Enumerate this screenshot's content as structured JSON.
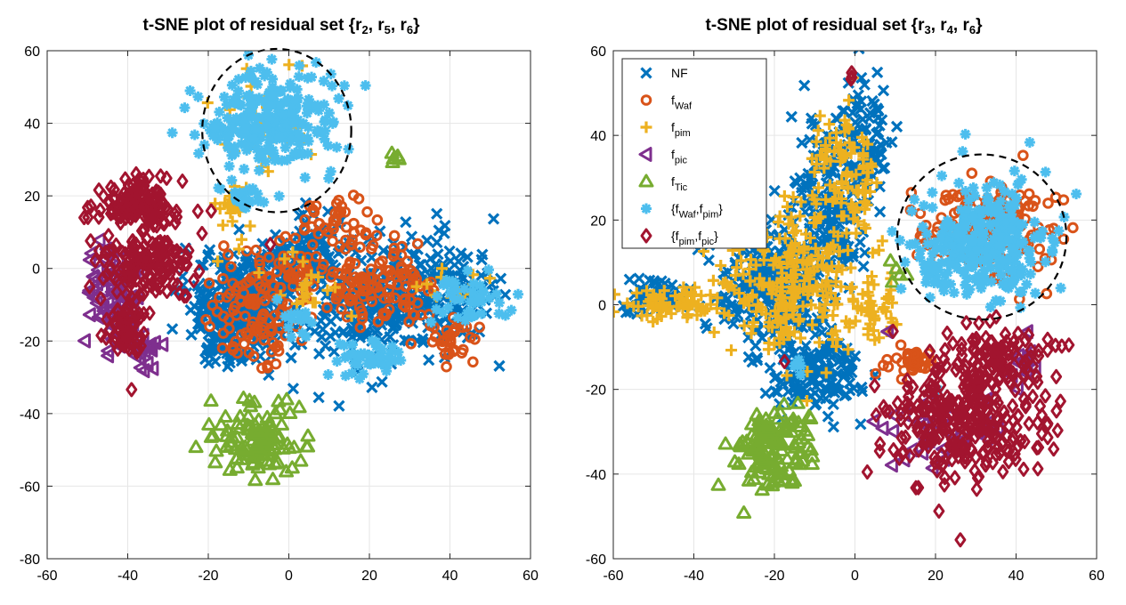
{
  "colors": {
    "NF": "#0072BD",
    "fWaf": "#D95319",
    "fpim": "#EDB120",
    "fpic": "#7E2F8E",
    "fTic": "#77AC30",
    "fWaf_fpim": "#4DBEEE",
    "fpim_fpic": "#A2142F",
    "grid": "#e6e6e6"
  },
  "chart_data": [
    {
      "type": "scatter",
      "title_parts": [
        "t-SNE plot of residual set {r",
        "2",
        ", r",
        "5",
        ", r",
        "6",
        "}"
      ],
      "xlim": [
        -60,
        60
      ],
      "ylim": [
        -80,
        60
      ],
      "xticks": [
        -60,
        -40,
        -20,
        0,
        20,
        40,
        60
      ],
      "yticks": [
        -80,
        -60,
        -40,
        -20,
        0,
        20,
        40,
        60
      ],
      "grid": true,
      "annotations": [
        {
          "type": "dashed-circle",
          "cx": -3,
          "cy": 38,
          "rx": 18.5,
          "ry": 22.5
        }
      ],
      "clusters": [
        {
          "cls": "NF",
          "marker": "x",
          "regions": [
            [
              -10,
              -8,
              14,
              14,
              300
            ],
            [
              20,
              -10,
              18,
              18,
              220
            ],
            [
              40,
              -5,
              15,
              16,
              120
            ],
            [
              5,
              5,
              10,
              10,
              80
            ],
            [
              -15,
              -20,
              8,
              8,
              60
            ]
          ]
        },
        {
          "cls": "fWaf",
          "marker": "o",
          "regions": [
            [
              -8,
              -12,
              12,
              14,
              110
            ],
            [
              22,
              -5,
              14,
              12,
              120
            ],
            [
              12,
              12,
              10,
              7,
              40
            ],
            [
              40,
              -20,
              6,
              6,
              30
            ],
            [
              2,
              0,
              8,
              8,
              40
            ]
          ]
        },
        {
          "cls": "fpim",
          "marker": "+",
          "regions": [
            [
              -5,
              40,
              12,
              14,
              30
            ],
            [
              -15,
              15,
              6,
              10,
              25
            ],
            [
              5,
              -5,
              10,
              8,
              20
            ],
            [
              42,
              -5,
              8,
              8,
              15
            ]
          ]
        },
        {
          "cls": "fpic",
          "marker": "<",
          "regions": [
            [
              -44,
              -8,
              6,
              14,
              70
            ],
            [
              -36,
              -22,
              5,
              6,
              25
            ]
          ]
        },
        {
          "cls": "fTic",
          "marker": "^",
          "regions": [
            [
              -8,
              -47,
              12,
              9,
              110
            ],
            [
              26,
              30,
              2,
              3,
              6
            ]
          ]
        },
        {
          "cls": "fWaf_fpim",
          "marker": "*",
          "regions": [
            [
              -5,
              40,
              16,
              14,
              260
            ],
            [
              -12,
              20,
              4,
              5,
              25
            ],
            [
              45,
              -8,
              10,
              9,
              45
            ],
            [
              20,
              -25,
              10,
              5,
              45
            ],
            [
              2,
              -15,
              5,
              5,
              15
            ]
          ]
        },
        {
          "cls": "fpim_fpic",
          "marker": "d",
          "regions": [
            [
              -38,
              18,
              10,
              6,
              150
            ],
            [
              -35,
              2,
              12,
              8,
              140
            ],
            [
              -40,
              -15,
              5,
              10,
              70
            ],
            [
              -5,
              7,
              1,
              1,
              1
            ]
          ]
        }
      ]
    },
    {
      "type": "scatter",
      "title_parts": [
        "t-SNE plot of residual set {r",
        "3",
        ", r",
        "4",
        ", r",
        "6",
        "}"
      ],
      "xlim": [
        -60,
        60
      ],
      "ylim": [
        -60,
        60
      ],
      "xticks": [
        -60,
        -40,
        -20,
        0,
        20,
        40,
        60
      ],
      "yticks": [
        -60,
        -40,
        -20,
        0,
        20,
        40,
        60
      ],
      "grid": true,
      "annotations": [
        {
          "type": "dashed-circle",
          "cx": 31.5,
          "cy": 16,
          "rx": 21,
          "ry": 19.5
        }
      ],
      "clusters": [
        {
          "cls": "NF",
          "marker": "x",
          "regions": [
            [
              -20,
              5,
              15,
              15,
              300
            ],
            [
              -5,
              25,
              10,
              20,
              200
            ],
            [
              -10,
              -15,
              12,
              10,
              150
            ],
            [
              3,
              40,
              5,
              12,
              60
            ],
            [
              -50,
              2,
              8,
              4,
              60
            ]
          ]
        },
        {
          "cls": "fWaf",
          "marker": "o",
          "regions": [
            [
              33,
              18,
              16,
              11,
              160
            ],
            [
              15,
              -13,
              6,
              3,
              40
            ],
            [
              6,
              -16,
              1,
              1,
              1
            ]
          ]
        },
        {
          "cls": "fpim",
          "marker": "+",
          "regions": [
            [
              -15,
              5,
              18,
              18,
              260
            ],
            [
              -2,
              30,
              8,
              15,
              100
            ],
            [
              -45,
              0,
              12,
              4,
              80
            ],
            [
              5,
              0,
              6,
              8,
              40
            ]
          ]
        },
        {
          "cls": "fpic",
          "marker": "<",
          "regions": [
            [
              20,
              -30,
              15,
              10,
              35
            ],
            [
              42,
              -15,
              5,
              6,
              15
            ],
            [
              8,
              -6,
              1,
              1,
              1
            ]
          ]
        },
        {
          "cls": "fTic",
          "marker": "^",
          "regions": [
            [
              -20,
              -35,
              9,
              10,
              130
            ],
            [
              9,
              7,
              3,
              3,
              5
            ]
          ]
        },
        {
          "cls": "fWaf_fpim",
          "marker": "*",
          "regions": [
            [
              31,
              14,
              16,
              13,
              320
            ],
            [
              -15,
              -15,
              2,
              2,
              5
            ],
            [
              20,
              -20,
              1,
              1,
              1
            ]
          ]
        },
        {
          "cls": "fpim_fpic",
          "marker": "d",
          "regions": [
            [
              27,
              -28,
              20,
              14,
              280
            ],
            [
              36,
              -12,
              12,
              7,
              100
            ],
            [
              -1,
              54,
              1,
              1,
              3
            ],
            [
              -17,
              -13,
              1,
              1,
              1
            ],
            [
              9,
              -6,
              1,
              1,
              1
            ]
          ]
        }
      ],
      "legend": {
        "position": "top-left",
        "entries": [
          {
            "cls": "NF",
            "marker": "x",
            "parts": [
              "NF"
            ]
          },
          {
            "cls": "fWaf",
            "marker": "o",
            "parts": [
              "f",
              "Waf"
            ]
          },
          {
            "cls": "fpim",
            "marker": "+",
            "parts": [
              "f",
              "pim"
            ]
          },
          {
            "cls": "fpic",
            "marker": "<",
            "parts": [
              "f",
              "pic"
            ]
          },
          {
            "cls": "fTic",
            "marker": "^",
            "parts": [
              "f",
              "Tic"
            ]
          },
          {
            "cls": "fWaf_fpim",
            "marker": "*",
            "parts": [
              "{f",
              "Waf",
              ",f",
              "pim",
              "}"
            ]
          },
          {
            "cls": "fpim_fpic",
            "marker": "d",
            "parts": [
              "{f",
              "pim",
              ",f",
              "pic",
              "}"
            ]
          }
        ]
      }
    }
  ]
}
